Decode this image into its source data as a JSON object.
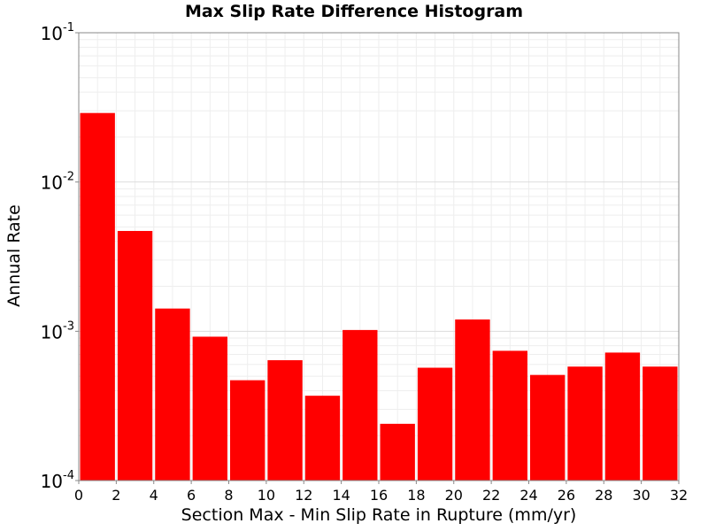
{
  "chart_data": {
    "type": "bar",
    "title": "Max Slip Rate Difference Histogram",
    "xlabel": "Section Max - Min Slip Rate in Rupture (mm/yr)",
    "ylabel": "Annual Rate",
    "xlim": [
      0,
      32
    ],
    "ylim": [
      0.0001,
      0.1
    ],
    "yscale": "log",
    "grid": true,
    "bar_color": "#ff0000",
    "x_ticks": [
      0,
      2,
      4,
      6,
      8,
      10,
      12,
      14,
      16,
      18,
      20,
      22,
      24,
      26,
      28,
      30,
      32
    ],
    "y_ticks": [
      {
        "value": 0.1,
        "base": "10",
        "exp": "-1"
      },
      {
        "value": 0.01,
        "base": "10",
        "exp": "-2"
      },
      {
        "value": 0.001,
        "base": "10",
        "exp": "-3"
      },
      {
        "value": 0.0001,
        "base": "10",
        "exp": "-4"
      }
    ],
    "bins": [
      {
        "x_start": 0,
        "x_end": 2,
        "value": 0.029
      },
      {
        "x_start": 2,
        "x_end": 4,
        "value": 0.0047
      },
      {
        "x_start": 4,
        "x_end": 6,
        "value": 0.00142
      },
      {
        "x_start": 6,
        "x_end": 8,
        "value": 0.00092
      },
      {
        "x_start": 8,
        "x_end": 10,
        "value": 0.00047
      },
      {
        "x_start": 10,
        "x_end": 12,
        "value": 0.00064
      },
      {
        "x_start": 12,
        "x_end": 14,
        "value": 0.00037
      },
      {
        "x_start": 14,
        "x_end": 16,
        "value": 0.00102
      },
      {
        "x_start": 16,
        "x_end": 18,
        "value": 0.00024
      },
      {
        "x_start": 18,
        "x_end": 20,
        "value": 0.00057
      },
      {
        "x_start": 20,
        "x_end": 22,
        "value": 0.0012
      },
      {
        "x_start": 22,
        "x_end": 24,
        "value": 0.00074
      },
      {
        "x_start": 24,
        "x_end": 26,
        "value": 0.00051
      },
      {
        "x_start": 26,
        "x_end": 28,
        "value": 0.00058
      },
      {
        "x_start": 28,
        "x_end": 30,
        "value": 0.00072
      },
      {
        "x_start": 30,
        "x_end": 32,
        "value": 0.00058
      }
    ]
  }
}
